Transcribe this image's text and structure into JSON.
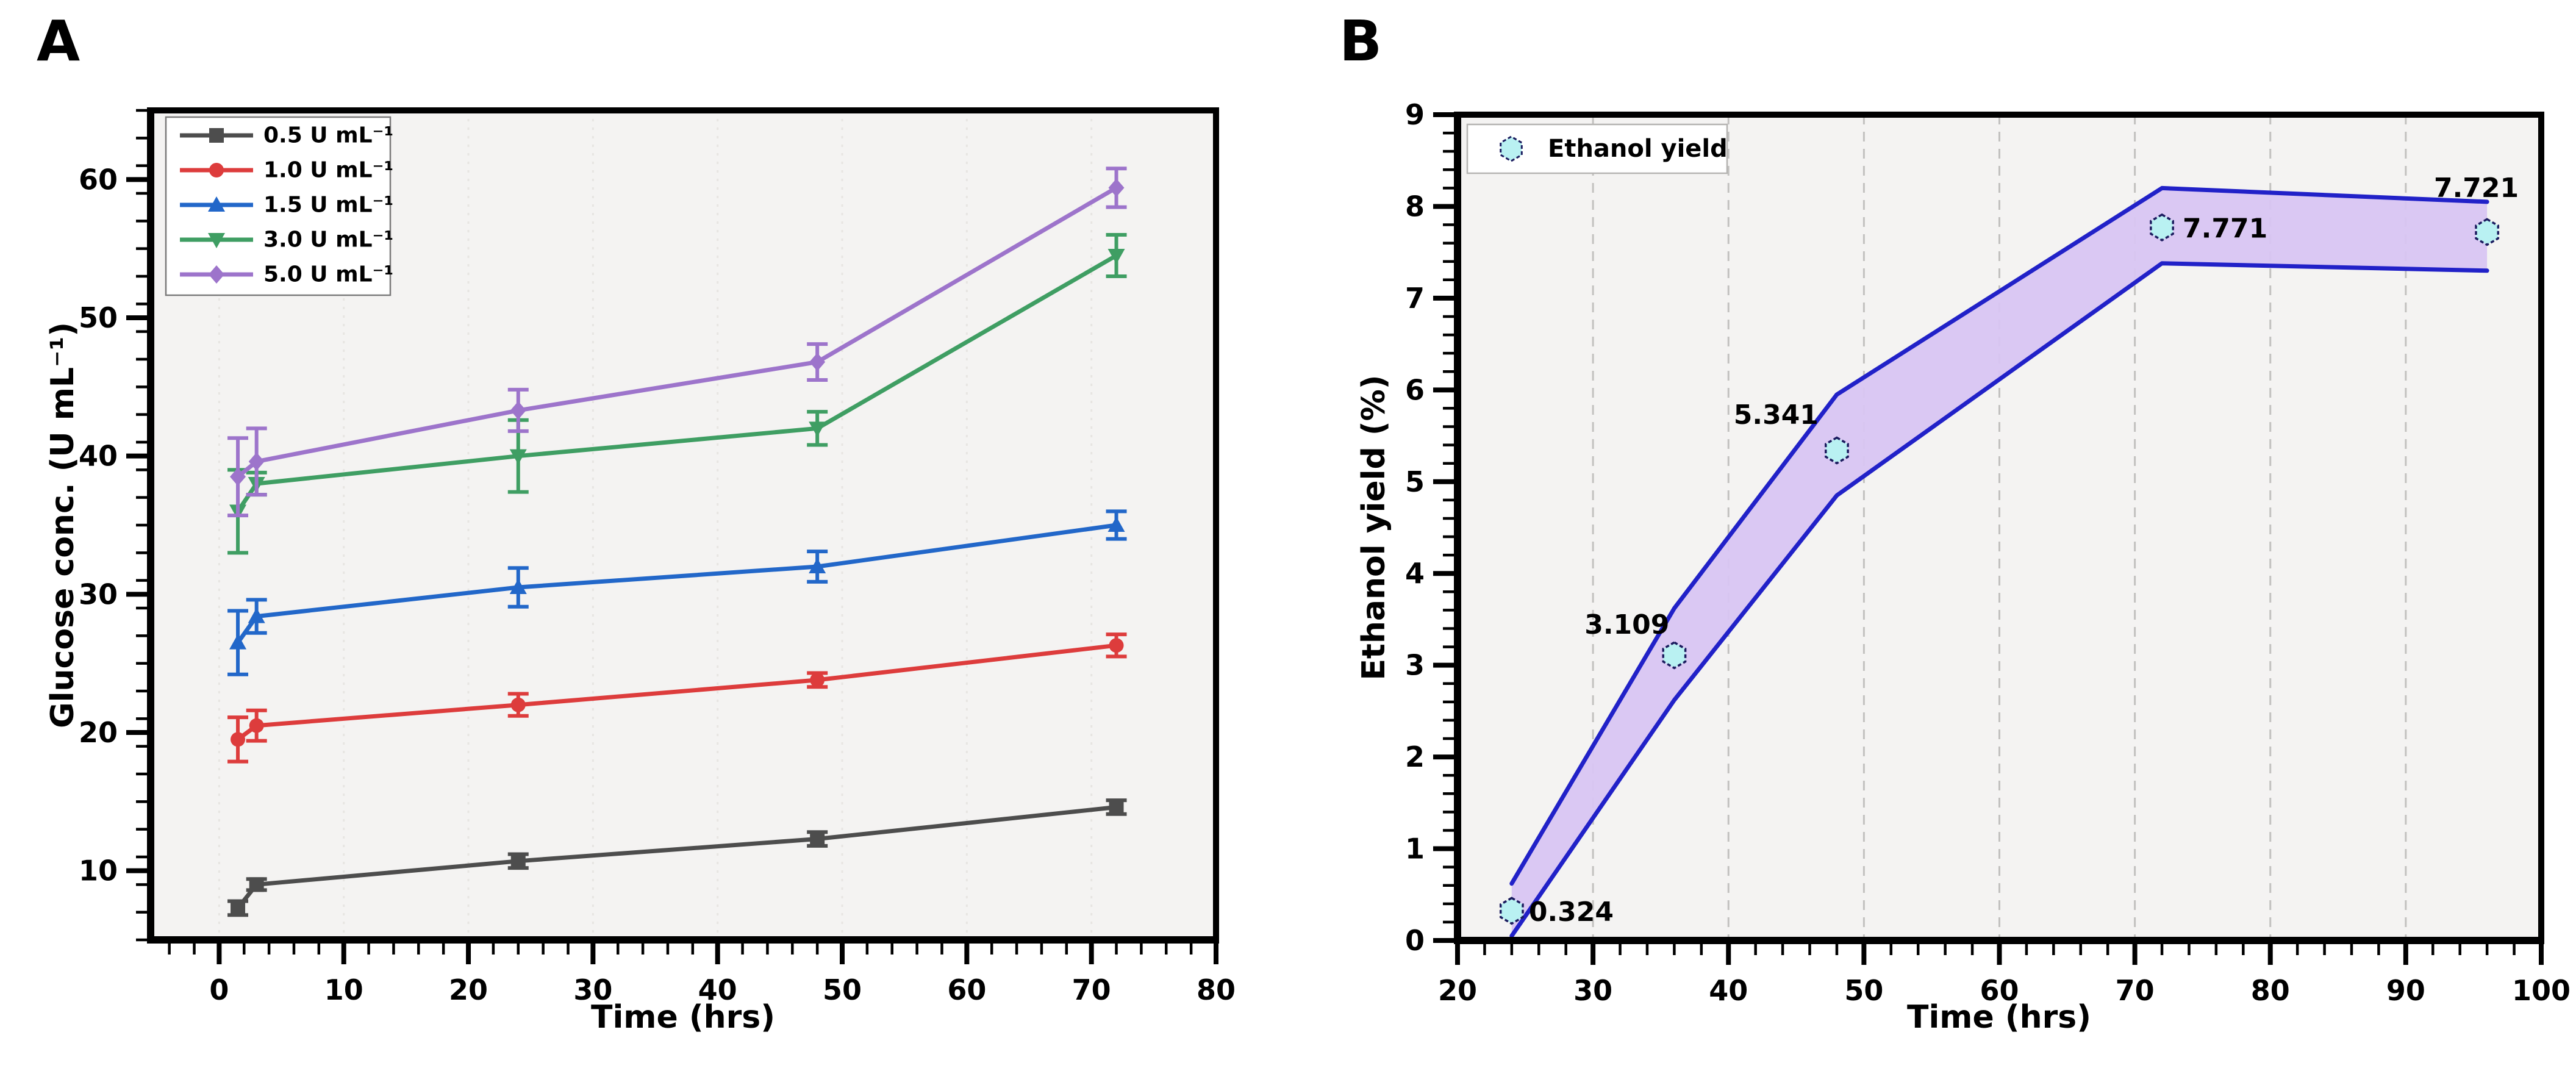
{
  "figure": {
    "panel_labels": {
      "a": "A",
      "b": "B"
    },
    "background": "#ffffff",
    "plot_background": "#f4f3f2",
    "spine_color": "#000000"
  },
  "chart_data": [
    {
      "id": "A",
      "type": "line",
      "panel_label": "A",
      "title": "",
      "xlabel": "Time (hrs)",
      "ylabel": "Glucose conc. (U mL⁻¹)",
      "xlim": [
        -5.5,
        80
      ],
      "ylim": [
        5,
        65
      ],
      "x_major_ticks": [
        0,
        10,
        20,
        30,
        40,
        50,
        60,
        70,
        80
      ],
      "x_minor_step": 2,
      "y_major_ticks": [
        10,
        20,
        30,
        40,
        50,
        60
      ],
      "y_minor_step": 2,
      "grid": {
        "vertical_at": [
          0,
          10,
          20,
          30,
          40,
          50,
          60,
          70
        ],
        "color": "#e7e5e2",
        "style": "dotted"
      },
      "legend_position": "top-left",
      "x": [
        1.5,
        3,
        24,
        48,
        72
      ],
      "series": [
        {
          "name": "0.5 U mL⁻¹",
          "color": "#4d4d4d",
          "marker": "square",
          "values": [
            7.3,
            9.0,
            10.7,
            12.3,
            14.6
          ],
          "errors": [
            0.5,
            0.4,
            0.5,
            0.5,
            0.5
          ]
        },
        {
          "name": "1.0 U mL⁻¹",
          "color": "#dd3c3c",
          "marker": "circle",
          "values": [
            19.5,
            20.5,
            22.0,
            23.8,
            26.3
          ],
          "errors": [
            1.6,
            1.1,
            0.8,
            0.5,
            0.8
          ]
        },
        {
          "name": "1.5 U mL⁻¹",
          "color": "#2267c9",
          "marker": "triangle-up",
          "values": [
            26.5,
            28.4,
            30.5,
            32.0,
            35.0
          ],
          "errors": [
            2.3,
            1.2,
            1.4,
            1.1,
            1.0
          ]
        },
        {
          "name": "3.0 U mL⁻¹",
          "color": "#3f9e63",
          "marker": "triangle-down",
          "values": [
            36.0,
            38.0,
            40.0,
            42.0,
            54.5
          ],
          "errors": [
            3.0,
            0.8,
            2.6,
            1.2,
            1.5
          ]
        },
        {
          "name": "5.0 U mL⁻¹",
          "color": "#9d74cb",
          "marker": "diamond",
          "values": [
            38.5,
            39.6,
            43.3,
            46.8,
            59.4
          ],
          "errors": [
            2.8,
            2.4,
            1.5,
            1.3,
            1.4
          ]
        }
      ]
    },
    {
      "id": "B",
      "type": "line-band",
      "panel_label": "B",
      "title": "",
      "xlabel": "Time (hrs)",
      "ylabel": "Ethanol yield (%)",
      "xlim": [
        20,
        100
      ],
      "ylim": [
        0,
        9
      ],
      "x_major_ticks": [
        20,
        30,
        40,
        50,
        60,
        70,
        80,
        90,
        100
      ],
      "x_minor_step": 2,
      "y_major_ticks": [
        0,
        1,
        2,
        3,
        4,
        5,
        6,
        7,
        8,
        9
      ],
      "y_minor_step": 0.2,
      "grid": {
        "vertical_at": [
          30,
          40,
          50,
          60,
          70,
          80,
          90
        ],
        "color": "#c2c1bf",
        "style": "dashed"
      },
      "legend_label": "Ethanol yield",
      "x": [
        24,
        36,
        48,
        72,
        96
      ],
      "values": [
        0.324,
        3.109,
        5.341,
        7.771,
        7.721
      ],
      "point_labels": [
        "0.324",
        "3.109",
        "5.341",
        "7.771",
        "7.721"
      ],
      "band_upper": [
        0.62,
        3.62,
        5.95,
        8.2,
        8.05
      ],
      "band_lower": [
        0.05,
        2.62,
        4.85,
        7.38,
        7.3
      ],
      "colors": {
        "band_fill": "#d8c5f2",
        "band_line": "#2121c8",
        "marker_fill": "#b9f1f2",
        "marker_edge": "#1b1b5e"
      }
    }
  ]
}
